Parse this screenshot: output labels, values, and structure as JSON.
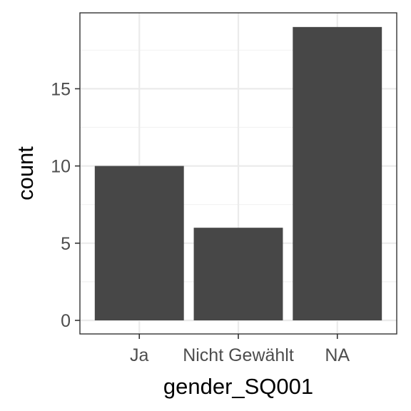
{
  "chart_data": {
    "type": "bar",
    "categories": [
      "Ja",
      "Nicht Gewählt",
      "NA"
    ],
    "values": [
      10,
      6,
      19
    ],
    "xlabel": "gender_SQ001",
    "ylabel": "count",
    "ylim": [
      0,
      19.95
    ],
    "yticks": [
      0,
      5,
      10,
      15
    ],
    "yticks_labels": [
      "0",
      "5",
      "10",
      "15"
    ],
    "grid": true,
    "legend": "none",
    "colors": {
      "bar": "#474747",
      "panel_background": "#ffffff",
      "grid_major": "#ebebeb",
      "grid_minor": "#f2f2f2",
      "panel_border": "#333333",
      "tick_text": "#4d4d4d",
      "axis_title": "#000000"
    }
  }
}
